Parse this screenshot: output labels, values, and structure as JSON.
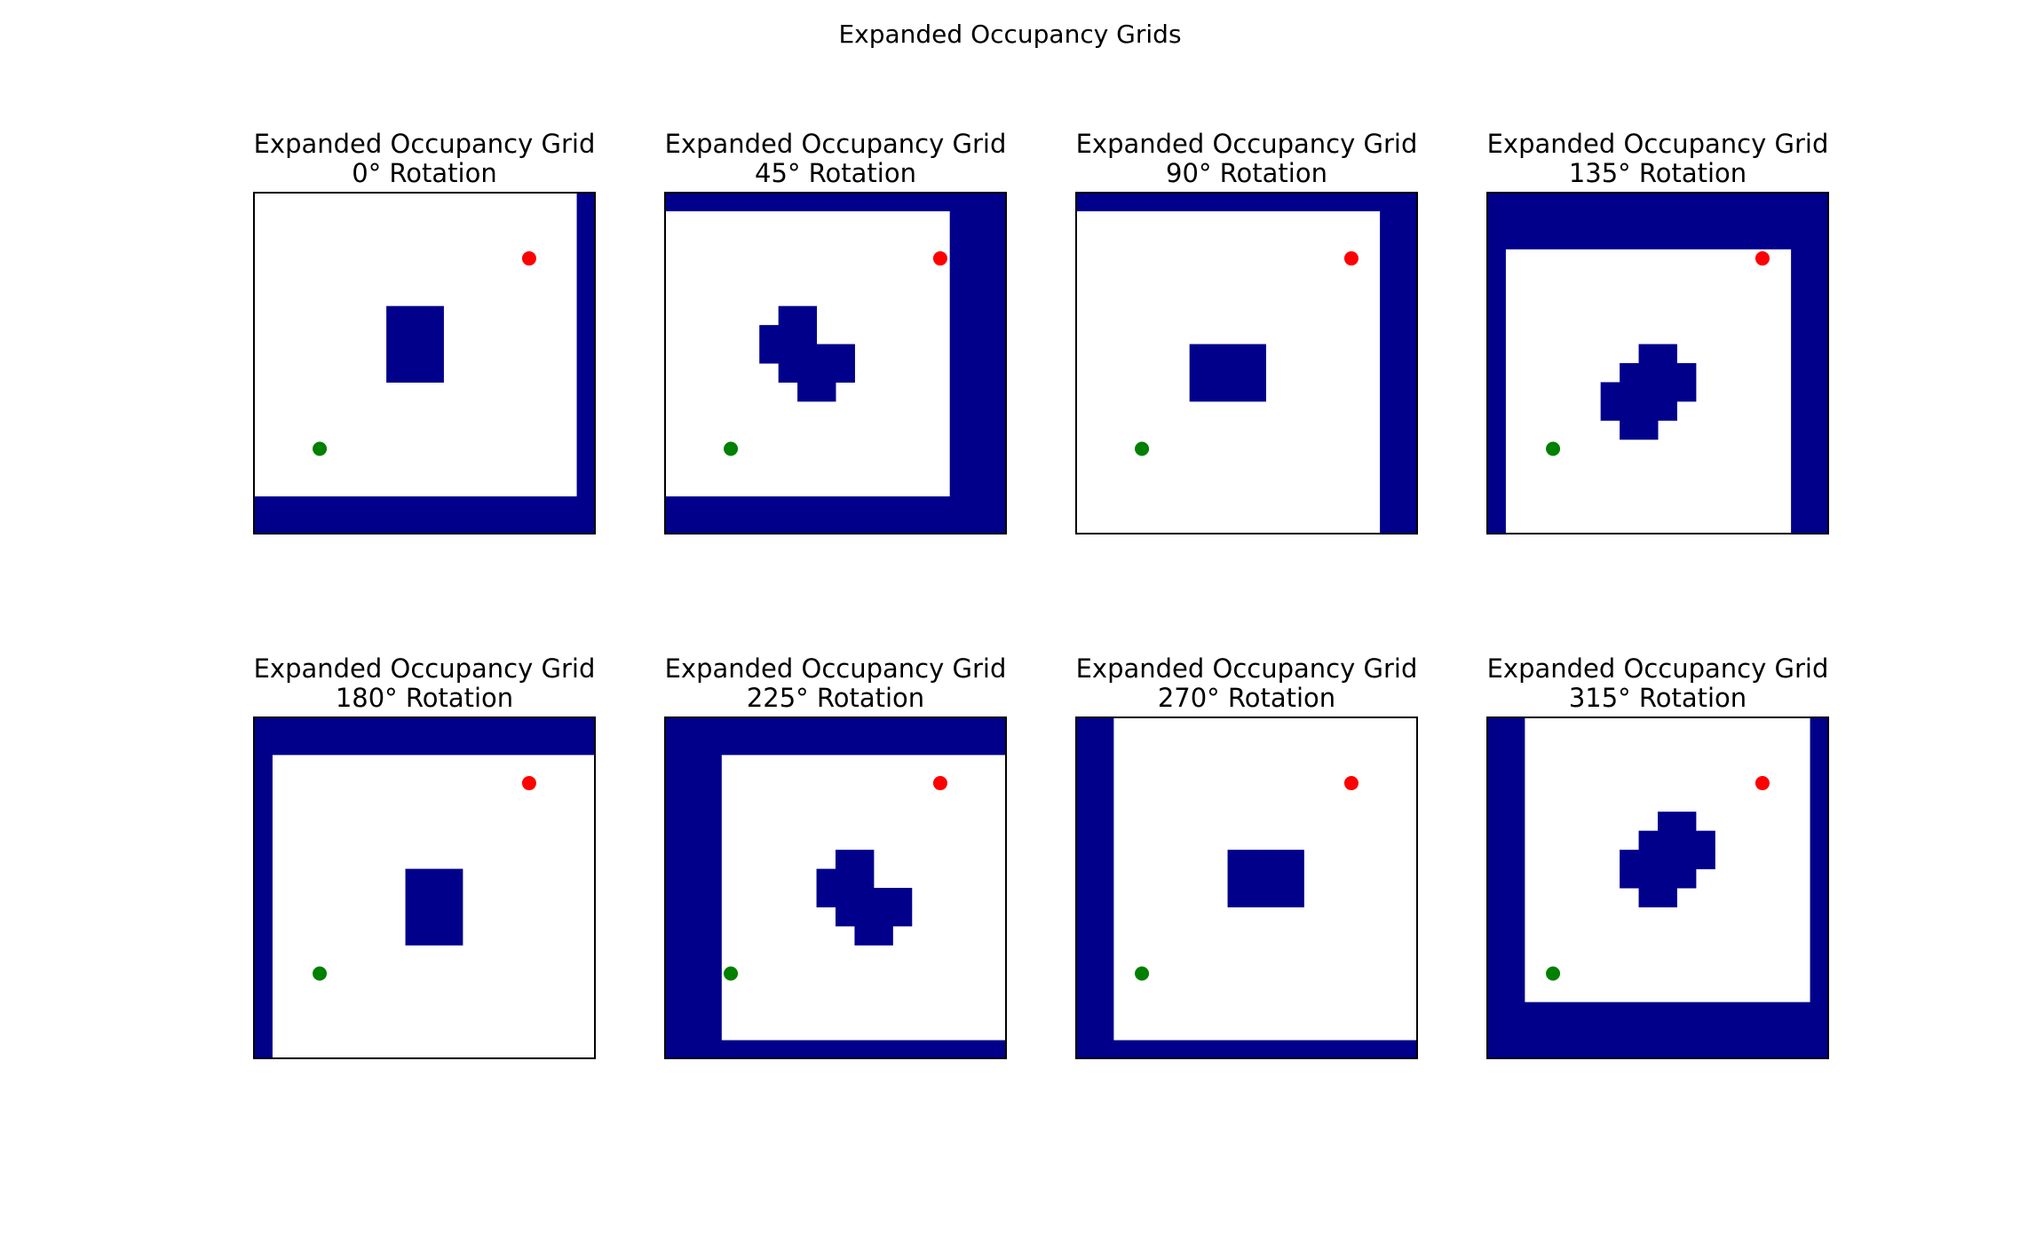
{
  "title": "Expanded Occupancy Grids",
  "colors": {
    "occupied": "#00008b",
    "free": "#ffffff",
    "start": "#008000",
    "goal": "#ff0000"
  },
  "chart_data": [
    {
      "type": "heatmap",
      "title_line1": "Expanded Occupancy Grid",
      "title_line2": "0° Rotation",
      "grid_size": 18,
      "start": [
        3.5,
        13.5
      ],
      "goal": [
        14.5,
        3.5
      ],
      "occupied_rects": [
        [
          17,
          0,
          18,
          18
        ],
        [
          0,
          16,
          18,
          18
        ],
        [
          7,
          6,
          10,
          10
        ]
      ]
    },
    {
      "type": "heatmap",
      "title_line1": "Expanded Occupancy Grid",
      "title_line2": "45° Rotation",
      "grid_size": 18,
      "start": [
        3.5,
        13.5
      ],
      "goal": [
        14.5,
        3.5
      ],
      "occupied_rects": [
        [
          0,
          0,
          18,
          1
        ],
        [
          15,
          1,
          18,
          18
        ],
        [
          0,
          16,
          18,
          18
        ],
        [
          6,
          6,
          8,
          7
        ],
        [
          5,
          7,
          8,
          8
        ],
        [
          5,
          8,
          10,
          9
        ],
        [
          6,
          9,
          10,
          10
        ],
        [
          7,
          10,
          9,
          11
        ]
      ]
    },
    {
      "type": "heatmap",
      "title_line1": "Expanded Occupancy Grid",
      "title_line2": "90° Rotation",
      "grid_size": 18,
      "start": [
        3.5,
        13.5
      ],
      "goal": [
        14.5,
        3.5
      ],
      "occupied_rects": [
        [
          0,
          0,
          18,
          1
        ],
        [
          16,
          1,
          18,
          18
        ],
        [
          6,
          8,
          10,
          11
        ]
      ]
    },
    {
      "type": "heatmap",
      "title_line1": "Expanded Occupancy Grid",
      "title_line2": "135° Rotation",
      "grid_size": 18,
      "start": [
        3.5,
        13.5
      ],
      "goal": [
        14.5,
        3.5
      ],
      "occupied_rects": [
        [
          0,
          0,
          18,
          3
        ],
        [
          0,
          3,
          1,
          18
        ],
        [
          16,
          3,
          18,
          18
        ],
        [
          8,
          8,
          10,
          9
        ],
        [
          7,
          9,
          11,
          10
        ],
        [
          6,
          10,
          11,
          11
        ],
        [
          6,
          11,
          10,
          12
        ],
        [
          7,
          12,
          9,
          13
        ]
      ]
    },
    {
      "type": "heatmap",
      "title_line1": "Expanded Occupancy Grid",
      "title_line2": "180° Rotation",
      "grid_size": 18,
      "start": [
        3.5,
        13.5
      ],
      "goal": [
        14.5,
        3.5
      ],
      "occupied_rects": [
        [
          0,
          0,
          18,
          2
        ],
        [
          0,
          2,
          1,
          18
        ],
        [
          8,
          8,
          11,
          12
        ]
      ]
    },
    {
      "type": "heatmap",
      "title_line1": "Expanded Occupancy Grid",
      "title_line2": "225° Rotation",
      "grid_size": 18,
      "start": [
        3.5,
        13.5
      ],
      "goal": [
        14.5,
        3.5
      ],
      "occupied_rects": [
        [
          0,
          0,
          18,
          2
        ],
        [
          0,
          2,
          3,
          18
        ],
        [
          3,
          17,
          18,
          18
        ],
        [
          9,
          7,
          11,
          8
        ],
        [
          8,
          8,
          11,
          9
        ],
        [
          8,
          9,
          13,
          10
        ],
        [
          9,
          10,
          13,
          11
        ],
        [
          10,
          11,
          12,
          12
        ]
      ]
    },
    {
      "type": "heatmap",
      "title_line1": "Expanded Occupancy Grid",
      "title_line2": "270° Rotation",
      "grid_size": 18,
      "start": [
        3.5,
        13.5
      ],
      "goal": [
        14.5,
        3.5
      ],
      "occupied_rects": [
        [
          0,
          0,
          2,
          18
        ],
        [
          2,
          17,
          18,
          18
        ],
        [
          8,
          7,
          12,
          10
        ]
      ]
    },
    {
      "type": "heatmap",
      "title_line1": "Expanded Occupancy Grid",
      "title_line2": "315° Rotation",
      "grid_size": 18,
      "start": [
        3.5,
        13.5
      ],
      "goal": [
        14.5,
        3.5
      ],
      "occupied_rects": [
        [
          0,
          0,
          2,
          18
        ],
        [
          17,
          0,
          18,
          18
        ],
        [
          2,
          15,
          17,
          18
        ],
        [
          9,
          5,
          11,
          6
        ],
        [
          8,
          6,
          12,
          7
        ],
        [
          7,
          7,
          12,
          8
        ],
        [
          7,
          8,
          11,
          9
        ],
        [
          8,
          9,
          10,
          10
        ]
      ]
    }
  ]
}
